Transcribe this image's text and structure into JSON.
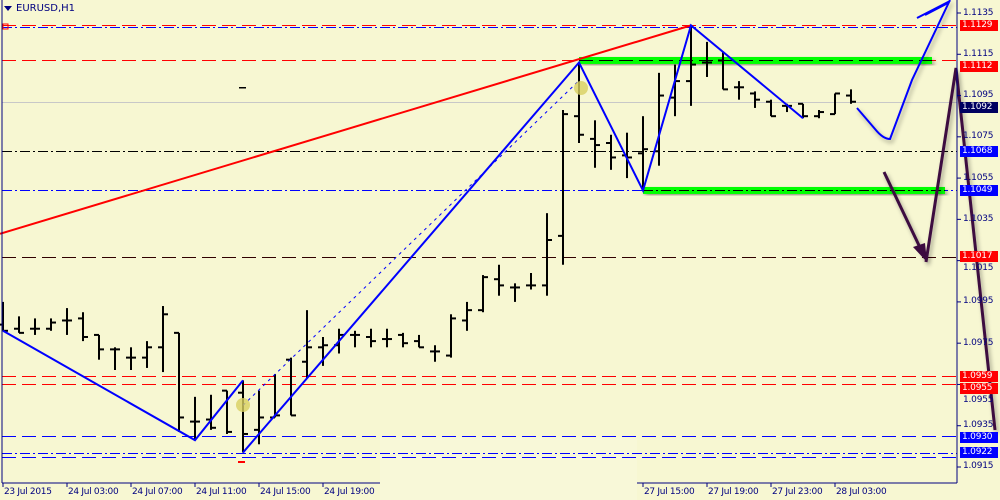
{
  "window": {
    "symbol_title": "EURUSD,H1",
    "menu_icon": "triangle-down-icon"
  },
  "colors": {
    "background": "#f7f7d2",
    "axis": "#000080",
    "bars": "#000000",
    "zigzag": "#0000ff",
    "trendline": "#ff0000",
    "zone": "#00ff00",
    "arrows": "#3c0a40"
  },
  "chart_data": {
    "type": "ohlc",
    "timeframe": "H1",
    "ylim": [
      1.0915,
      1.1135
    ],
    "y_ticks": [
      "1.1135",
      "1.1115",
      "1.1095",
      "1.1075",
      "1.1055",
      "1.1035",
      "1.1015",
      "1.0995",
      "1.0975",
      "1.0955",
      "1.0935",
      "1.0915"
    ],
    "x_ticks": [
      {
        "bar": 0,
        "label": "23 Jul 2015"
      },
      {
        "bar": 4,
        "label": "24 Jul 03:00"
      },
      {
        "bar": 8,
        "label": "24 Jul 07:00"
      },
      {
        "bar": 12,
        "label": "24 Jul 11:00"
      },
      {
        "bar": 16,
        "label": "24 Jul 15:00"
      },
      {
        "bar": 20,
        "label": "24 Jul 19:00"
      },
      {
        "bar": 40,
        "label": "27 Jul 15:00"
      },
      {
        "bar": 44,
        "label": "27 Jul 19:00"
      },
      {
        "bar": 48,
        "label": "27 Jul 23:00"
      },
      {
        "bar": 52,
        "label": "28 Jul 03:00"
      }
    ],
    "bars": [
      [
        1.0984,
        1.0995,
        1.0981,
        1.0981
      ],
      [
        1.0982,
        1.0988,
        1.098,
        1.098
      ],
      [
        1.0982,
        1.0987,
        1.0979,
        1.0982
      ],
      [
        1.0982,
        1.0987,
        1.0981,
        1.0985
      ],
      [
        1.0986,
        1.0992,
        1.0979,
        1.0986
      ],
      [
        1.0987,
        1.099,
        1.0976,
        1.0978
      ],
      [
        1.0979,
        1.0979,
        1.0967,
        1.0972
      ],
      [
        1.0972,
        1.0973,
        1.0962,
        1.0972
      ],
      [
        1.0968,
        1.0973,
        1.0962,
        1.0968
      ],
      [
        1.0968,
        1.0976,
        1.0963,
        1.0973
      ],
      [
        1.0973,
        1.0993,
        1.0961,
        1.0989
      ],
      [
        1.098,
        1.098,
        1.0932,
        1.0939
      ],
      [
        1.0937,
        1.0949,
        1.0928,
        1.0937
      ],
      [
        1.0938,
        1.095,
        1.0933,
        1.0934
      ],
      [
        1.0952,
        1.0952,
        1.0931,
        1.0932
      ],
      [
        1.0951,
        1.0957,
        1.0922,
        1.0931
      ],
      [
        1.0933,
        1.0952,
        1.0926,
        1.0939
      ],
      [
        1.0939,
        1.096,
        1.0939,
        1.094
      ],
      [
        1.0967,
        1.0968,
        1.094,
        1.094
      ],
      [
        1.0966,
        1.0991,
        1.0958,
        1.0973
      ],
      [
        1.0973,
        1.0978,
        1.0964,
        1.0974
      ],
      [
        1.0974,
        1.0982,
        1.097,
        1.0979
      ],
      [
        1.0979,
        1.0981,
        1.0973,
        1.0979
      ],
      [
        1.0978,
        1.0982,
        1.0973,
        1.0976
      ],
      [
        1.0977,
        1.0982,
        1.0973,
        1.0977
      ],
      [
        1.0979,
        1.098,
        1.0973,
        1.0975
      ],
      [
        1.0976,
        1.0979,
        1.0973,
        1.0973
      ],
      [
        1.0971,
        1.0974,
        1.0966,
        1.0971
      ],
      [
        1.0969,
        1.0989,
        1.0968,
        1.0987
      ],
      [
        1.0986,
        1.0995,
        1.0981,
        1.0991
      ],
      [
        1.0991,
        1.1008,
        1.099,
        1.1007
      ],
      [
        1.1006,
        1.1013,
        1.0998,
        1.1003
      ],
      [
        1.1002,
        1.1004,
        1.0995,
        1.1002
      ],
      [
        1.1003,
        1.1009,
        1.1001,
        1.1003
      ],
      [
        1.1003,
        1.1038,
        1.0998,
        1.1025
      ],
      [
        1.1027,
        1.1088,
        1.1013,
        1.1086
      ],
      [
        1.1085,
        1.1111,
        1.1072,
        1.1076
      ],
      [
        1.1074,
        1.1083,
        1.106,
        1.1071
      ],
      [
        1.1072,
        1.1076,
        1.1059,
        1.1065
      ],
      [
        1.1066,
        1.1077,
        1.1055,
        1.1065
      ],
      [
        1.1067,
        1.1085,
        1.1049,
        1.1069
      ],
      [
        1.1068,
        1.1106,
        1.1061,
        1.1095
      ],
      [
        1.1094,
        1.111,
        1.1085,
        1.1102
      ],
      [
        1.1102,
        1.1129,
        1.109,
        1.111
      ],
      [
        1.1111,
        1.1121,
        1.1104,
        1.1111
      ],
      [
        1.1112,
        1.1116,
        1.1098,
        1.1098
      ],
      [
        1.1099,
        1.1102,
        1.1093,
        1.1099
      ],
      [
        1.1096,
        1.1097,
        1.1089,
        1.1093
      ],
      [
        1.1092,
        1.1093,
        1.1085,
        1.1085
      ],
      [
        1.109,
        1.1091,
        1.1087,
        1.109
      ],
      [
        1.1091,
        1.1091,
        1.1084,
        1.1085
      ],
      [
        1.1085,
        1.1088,
        1.1084,
        1.1087
      ],
      [
        1.1086,
        1.1096,
        1.1086,
        1.1096
      ],
      [
        1.1095,
        1.1098,
        1.1091,
        1.1092
      ]
    ],
    "levels": [
      {
        "price": 1.1129,
        "label": "1.1129",
        "line": "#ff0000",
        "style": "dash",
        "box": "#ff0000"
      },
      {
        "price": 1.1112,
        "label": "1.1112",
        "line": "#ff0000",
        "style": "dash",
        "box": "#ff0000"
      },
      {
        "price": 1.1092,
        "label": "1.1092",
        "line": "#c8c8c8",
        "style": "solid",
        "box": "#000060"
      },
      {
        "price": 1.1068,
        "label": "1.1068",
        "line": "#000000",
        "style": "dashdot",
        "box": "#0000ff"
      },
      {
        "price": 1.1049,
        "label": "1.1049",
        "line": "#0000ff",
        "style": "dashdot",
        "box": "#0000ff"
      },
      {
        "price": 1.1017,
        "label": "1.1017",
        "line": "#300000",
        "style": "dash",
        "box": "#ff0000"
      },
      {
        "price": 1.0959,
        "label": "1.0959",
        "line": "#ff0000",
        "style": "dash",
        "box": "#ff0000"
      },
      {
        "price": 1.0955,
        "label": "1.0955",
        "line": "#ff0000",
        "style": "dash",
        "box": "#ff0000"
      },
      {
        "price": 1.093,
        "label": "1.0930",
        "line": "#0000ff",
        "style": "dash",
        "box": "#0000ff"
      },
      {
        "price": 1.0922,
        "label": "1.0922",
        "line": "#0000ff",
        "style": "dashdot",
        "box": "#0000ff"
      }
    ],
    "zones": [
      {
        "price": 1.1112,
        "from_bar": 36
      },
      {
        "price": 1.1049,
        "from_bar": 40
      }
    ],
    "trendline": [
      [
        0,
        1.1028
      ],
      [
        43,
        1.1129
      ]
    ],
    "zigzag": [
      [
        [
          0,
          1.0981
        ],
        [
          12,
          1.0928
        ],
        [
          15,
          1.0957
        ]
      ],
      [
        [
          15,
          1.0922
        ],
        [
          36,
          1.1111
        ],
        [
          40,
          1.1049
        ],
        [
          43,
          1.1129
        ],
        [
          50,
          1.1084
        ]
      ]
    ]
  }
}
